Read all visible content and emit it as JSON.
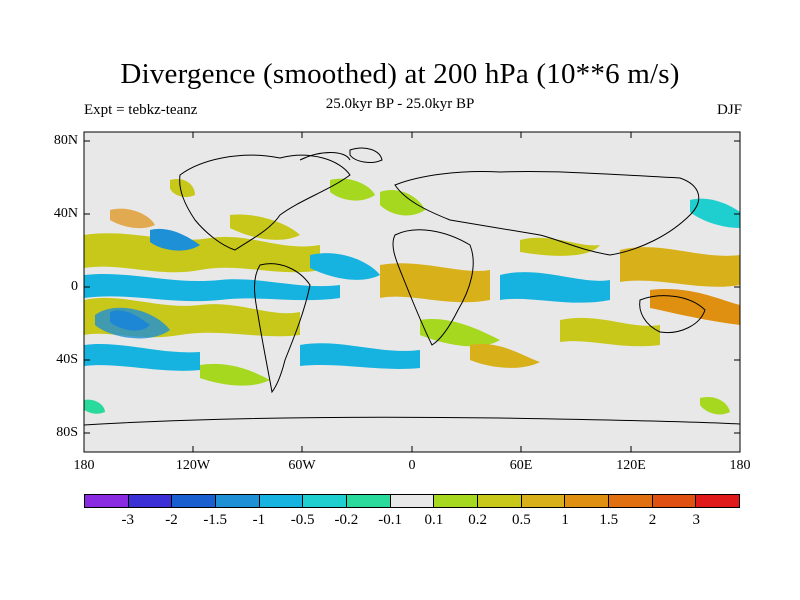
{
  "title": "Divergence (smoothed) at 200 hPa (10**6 m/s)",
  "left_label": "Expt = tebkz-teanz",
  "center_label": "25.0kyr BP - 25.0kyr BP",
  "right_label": "DJF",
  "lat_labels": [
    "80N",
    "40N",
    "0",
    "40S",
    "80S"
  ],
  "lon_labels": [
    "180",
    "120W",
    "60W",
    "0",
    "60E",
    "120E",
    "180"
  ],
  "colorbar": {
    "colors": [
      "#8a2be2",
      "#3b2fd6",
      "#1a5fd0",
      "#1e90d6",
      "#17b3e0",
      "#1fcfd0",
      "#2ad99c",
      "#e8e8e8",
      "#a6d81f",
      "#c8c81a",
      "#d8b01a",
      "#e09010",
      "#e07010",
      "#e05010",
      "#e01a1a"
    ],
    "labels": [
      "-3",
      "-2",
      "-1.5",
      "-1",
      "-0.5",
      "-0.2",
      "-0.1",
      "0.1",
      "0.2",
      "0.5",
      "1",
      "1.5",
      "2",
      "3"
    ]
  },
  "field_colors": {
    "land_bg": "#e8e8e8",
    "neg_small": "#2ad99c",
    "neg_mid": "#1fcfd0",
    "neg_large": "#17b3e0",
    "neg_xlarge": "#1e90d6",
    "neg_max": "#1a5fd0",
    "pos_small": "#a6d81f",
    "pos_mid": "#c8c81a",
    "pos_large": "#d8b01a",
    "pos_xlarge": "#e09010",
    "pos_max": "#e07010"
  }
}
